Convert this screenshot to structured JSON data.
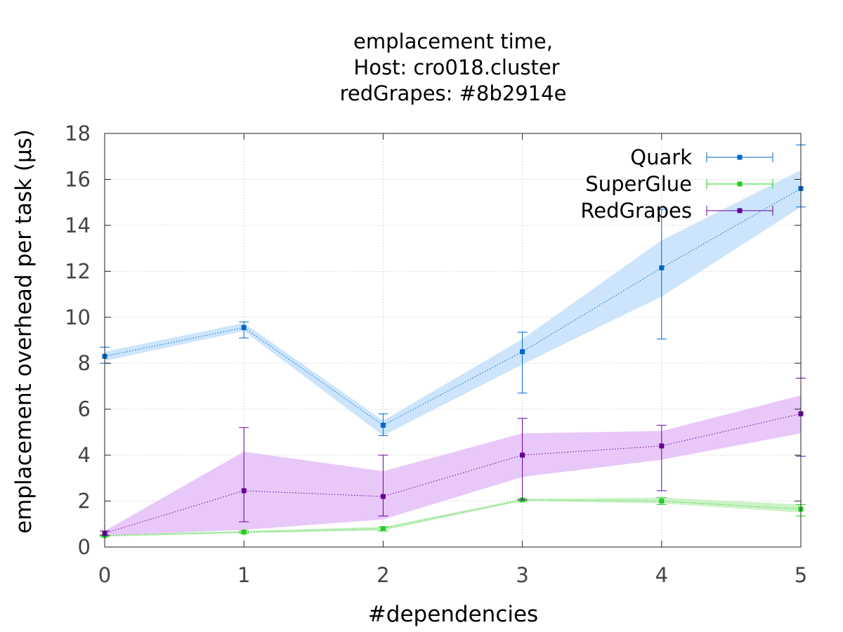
{
  "chart_data": {
    "type": "line",
    "title": [
      "emplacement time,",
      "Host: cro018.cluster",
      "redGrapes: #8b2914e"
    ],
    "xlabel": "#dependencies",
    "ylabel": "emplacement overhead per task (μs)",
    "xlim": [
      0,
      5
    ],
    "ylim": [
      0,
      18
    ],
    "xticks": [
      0,
      1,
      2,
      3,
      4,
      5
    ],
    "yticks": [
      0,
      2,
      4,
      6,
      8,
      10,
      12,
      14,
      16,
      18
    ],
    "grid": true,
    "legend_position": "top-right",
    "x": [
      0,
      1,
      2,
      3,
      4,
      5
    ],
    "series": [
      {
        "name": "Quark",
        "color": "#0066cc",
        "band_color": "#cce5fc",
        "values": [
          8.3,
          9.55,
          5.3,
          8.5,
          12.15,
          15.6
        ],
        "band_low": [
          8.1,
          9.4,
          4.85,
          7.95,
          10.9,
          14.8
        ],
        "band_high": [
          8.5,
          9.75,
          5.5,
          9.05,
          13.35,
          16.4
        ],
        "err_low": [
          8.0,
          9.1,
          4.85,
          6.7,
          9.05,
          14.8
        ],
        "err_high": [
          8.7,
          9.8,
          5.8,
          9.35,
          14.7,
          17.5
        ]
      },
      {
        "name": "SuperGlue",
        "color": "#22cc22",
        "band_color": "#ccf2c8",
        "values": [
          0.5,
          0.65,
          0.8,
          2.05,
          2.0,
          1.65
        ],
        "band_low": [
          0.45,
          0.6,
          0.72,
          2.0,
          1.9,
          1.5
        ],
        "band_high": [
          0.55,
          0.7,
          0.88,
          2.1,
          2.15,
          1.85
        ],
        "err_low": [
          0.45,
          0.6,
          0.7,
          2.0,
          1.85,
          1.35
        ],
        "err_high": [
          0.55,
          0.7,
          0.88,
          2.1,
          2.15,
          1.85
        ]
      },
      {
        "name": "RedGrapes",
        "color": "#660099",
        "band_color": "#e8c8f8",
        "values": [
          0.6,
          2.45,
          2.2,
          4.0,
          4.4,
          5.8
        ],
        "band_low": [
          0.5,
          0.75,
          1.2,
          3.05,
          3.8,
          4.95
        ],
        "band_high": [
          0.7,
          4.15,
          3.3,
          4.95,
          5.05,
          6.6
        ],
        "err_low": [
          0.5,
          1.1,
          1.35,
          2.05,
          2.45,
          3.95
        ],
        "err_high": [
          0.7,
          5.2,
          4.0,
          5.6,
          5.3,
          7.35
        ]
      }
    ]
  }
}
